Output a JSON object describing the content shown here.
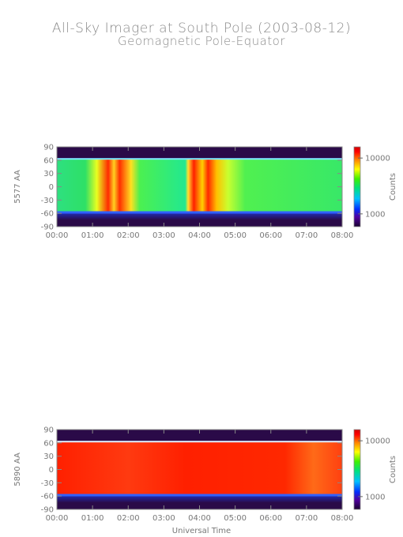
{
  "title": "All-Sky Imager at South Pole (2003-08-12)",
  "subtitle": "Geomagnetic Pole-Equator",
  "xlabel": "Universal Time",
  "chart_data": [
    {
      "type": "heatmap",
      "ylabel": "5577 AA",
      "colorbar_label": "Counts",
      "colorbar_ticks": [
        "10000",
        "1000"
      ],
      "colorbar_scale": "log",
      "x_ticks": [
        "00:00",
        "01:00",
        "02:00",
        "03:00",
        "04:00",
        "05:00",
        "06:00",
        "07:00",
        "08:00"
      ],
      "y_ticks": [
        "90",
        "60",
        "30",
        "0",
        "-30",
        "-60",
        "-90"
      ],
      "xlim": [
        0,
        8
      ],
      "ylim": [
        -90,
        90
      ],
      "field_of_view": [
        -57,
        62
      ],
      "colors": {
        "background": "#2a0a48",
        "field": "#33e070",
        "edge": "#3060ff",
        "bright": "#ff2a00"
      }
    },
    {
      "type": "heatmap",
      "ylabel": "5890 AA",
      "colorbar_label": "Counts",
      "colorbar_ticks": [
        "10000",
        "1000"
      ],
      "colorbar_scale": "log",
      "x_ticks": [
        "00:00",
        "01:00",
        "02:00",
        "03:00",
        "04:00",
        "05:00",
        "06:00",
        "07:00",
        "08:00"
      ],
      "y_ticks": [
        "90",
        "60",
        "30",
        "0",
        "-30",
        "-60",
        "-90"
      ],
      "xlim": [
        0,
        8
      ],
      "ylim": [
        -90,
        90
      ],
      "field_of_view": [
        -57,
        62
      ],
      "colors": {
        "background": "#2a0a48",
        "field": "#f81808",
        "edge": "#3060ff",
        "bright": "#ff8a10"
      }
    }
  ]
}
